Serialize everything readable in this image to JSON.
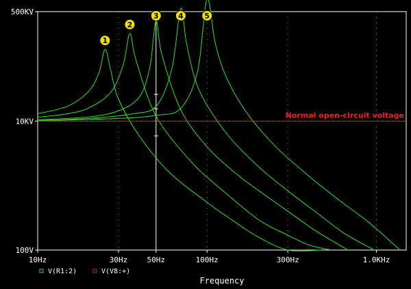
{
  "chart_data": {
    "type": "line",
    "title": "",
    "xlabel": "Frequency",
    "ylabel": "",
    "x_scale": "log",
    "y_scale": "log",
    "xlim": [
      10,
      1500
    ],
    "ylim": [
      100,
      500000
    ],
    "grid": "dotted",
    "x_ticks": [
      {
        "value": 10,
        "label": "10Hz"
      },
      {
        "value": 30,
        "label": "30Hz"
      },
      {
        "value": 50,
        "label": "50Hz"
      },
      {
        "value": 100,
        "label": "100Hz"
      },
      {
        "value": 300,
        "label": "300Hz"
      },
      {
        "value": 1000,
        "label": "1.0KHz"
      }
    ],
    "y_ticks": [
      {
        "value": 100,
        "label": "100V"
      },
      {
        "value": 10000,
        "label": "10KV"
      },
      {
        "value": 500000,
        "label": "500KV"
      }
    ],
    "series": [
      {
        "name": "V(R1:2)",
        "label": "1",
        "color": "#2ee02e",
        "x": [
          10,
          15,
          20,
          23,
          25,
          27,
          30,
          40,
          60,
          100,
          150,
          200,
          300,
          470
        ],
        "y": [
          13000,
          17000,
          29000,
          56000,
          130000,
          62000,
          22000,
          5800,
          1600,
          550,
          260,
          160,
          100,
          100
        ]
      },
      {
        "name": "",
        "label": "2",
        "color": "#2ee02e",
        "x": [
          10,
          15,
          20,
          27,
          32,
          35,
          38,
          50,
          80,
          120,
          200,
          300,
          400,
          540
        ],
        "y": [
          11500,
          13000,
          16000,
          28000,
          75000,
          230000,
          90000,
          12000,
          2400,
          900,
          300,
          170,
          120,
          100
        ]
      },
      {
        "name": "",
        "label": "3",
        "color": "#2ee02e",
        "x": [
          10,
          20,
          30,
          40,
          46,
          50,
          54,
          70,
          100,
          150,
          200,
          300,
          450,
          680
        ],
        "y": [
          10500,
          11600,
          14500,
          24000,
          70000,
          360000,
          110000,
          15000,
          4000,
          1500,
          850,
          400,
          190,
          100
        ]
      },
      {
        "name": "",
        "label": "4",
        "color": "#2ee02e",
        "x": [
          10,
          20,
          35,
          50,
          62,
          70,
          76,
          90,
          130,
          200,
          300,
          450,
          650,
          970
        ],
        "y": [
          10200,
          11000,
          12800,
          17000,
          65000,
          560000,
          150000,
          30000,
          6500,
          2000,
          830,
          370,
          180,
          100
        ]
      },
      {
        "name": "",
        "label": "5",
        "color": "#2ee02e",
        "x": [
          10,
          30,
          50,
          70,
          88,
          100,
          112,
          130,
          170,
          250,
          400,
          600,
          900,
          1380
        ],
        "y": [
          10100,
          11000,
          12300,
          15800,
          60000,
          780000,
          160000,
          48000,
          14000,
          4200,
          1400,
          600,
          270,
          100
        ]
      },
      {
        "name": "V(V8:+)",
        "color": "#e02020",
        "x": [
          10,
          1500
        ],
        "y": [
          10000,
          10000
        ]
      }
    ],
    "cursor": {
      "x": 50,
      "y": [
        10000,
        15500,
        26000,
        5900
      ]
    },
    "annotations": [
      {
        "text": "Normal open-circuit voltage",
        "x": 1500,
        "y": 10000,
        "align": "end"
      }
    ],
    "legend": {
      "position": "bottom-left"
    }
  }
}
